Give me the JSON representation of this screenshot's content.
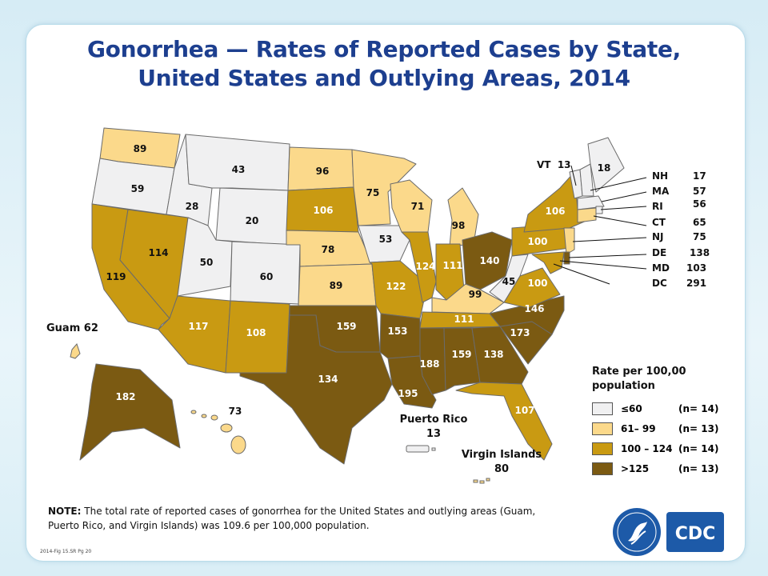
{
  "title_line1": "Gonorrhea — Rates of Reported Cases by State,",
  "title_line2": "United States and Outlying Areas, 2014",
  "colors": {
    "c1": "#f0f0f1",
    "c2": "#fbd98b",
    "c3": "#c99a12",
    "c4": "#7b5a12",
    "title": "#1d3f8f"
  },
  "state_values": {
    "WA": "89",
    "OR": "59",
    "CA": "119",
    "NV": "114",
    "ID": "28",
    "MT": "43",
    "WY": "20",
    "UT": "50",
    "CO": "60",
    "AZ": "117",
    "NM": "108",
    "ND": "96",
    "SD": "106",
    "NE": "78",
    "KS": "89",
    "OK": "159",
    "TX": "134",
    "MN": "75",
    "IA": "53",
    "MO": "122",
    "AR": "153",
    "LA": "195",
    "WI": "71",
    "IL": "124",
    "MS": "188",
    "MI": "98",
    "IN": "111",
    "KY": "99",
    "TN": "111",
    "AL": "159",
    "OH": "140",
    "WV": "45",
    "VA": "100",
    "NC": "146",
    "SC": "173",
    "GA": "138",
    "FL": "107",
    "PA": "100",
    "NY": "106",
    "ME": "18",
    "AK": "182",
    "HI": "73"
  },
  "callouts": {
    "vt": "VT  13",
    "ne_states": [
      {
        "abbr": "NH",
        "value": "17"
      },
      {
        "abbr": "MA",
        "value": "57"
      },
      {
        "abbr": "RI",
        "value": "56"
      },
      {
        "abbr": "CT",
        "value": "65"
      },
      {
        "abbr": "NJ",
        "value": "75"
      },
      {
        "abbr": "DE",
        "value": "138"
      },
      {
        "abbr": "MD",
        "value": "103"
      },
      {
        "abbr": "DC",
        "value": "291"
      }
    ]
  },
  "territories": {
    "guam": "Guam 62",
    "puerto_rico_name": "Puerto Rico",
    "puerto_rico_value": "13",
    "virgin_islands_name": "Virgin Islands",
    "virgin_islands_value": "80"
  },
  "legend": {
    "title": "Rate per 100,00 population",
    "items": [
      {
        "label": "≤60",
        "count": "(n= 14)",
        "color": "#f0f0f1"
      },
      {
        "label": "61– 99",
        "count": "(n= 13)",
        "color": "#fbd98b"
      },
      {
        "label": "100 – 124",
        "count": "(n= 14)",
        "color": "#c99a12"
      },
      {
        "label": ">125",
        "count": "(n= 13)",
        "color": "#7b5a12"
      }
    ]
  },
  "note": {
    "prefix": "NOTE:",
    "text": "The total rate of reported cases of gonorrhea for the United States and outlying areas (Guam, Puerto Rico, and Virgin Islands) was 109.6 per 100,000 population."
  },
  "figure_id": "2014-Fig 15.SR Pg 20",
  "logo": {
    "text": "CDC"
  }
}
